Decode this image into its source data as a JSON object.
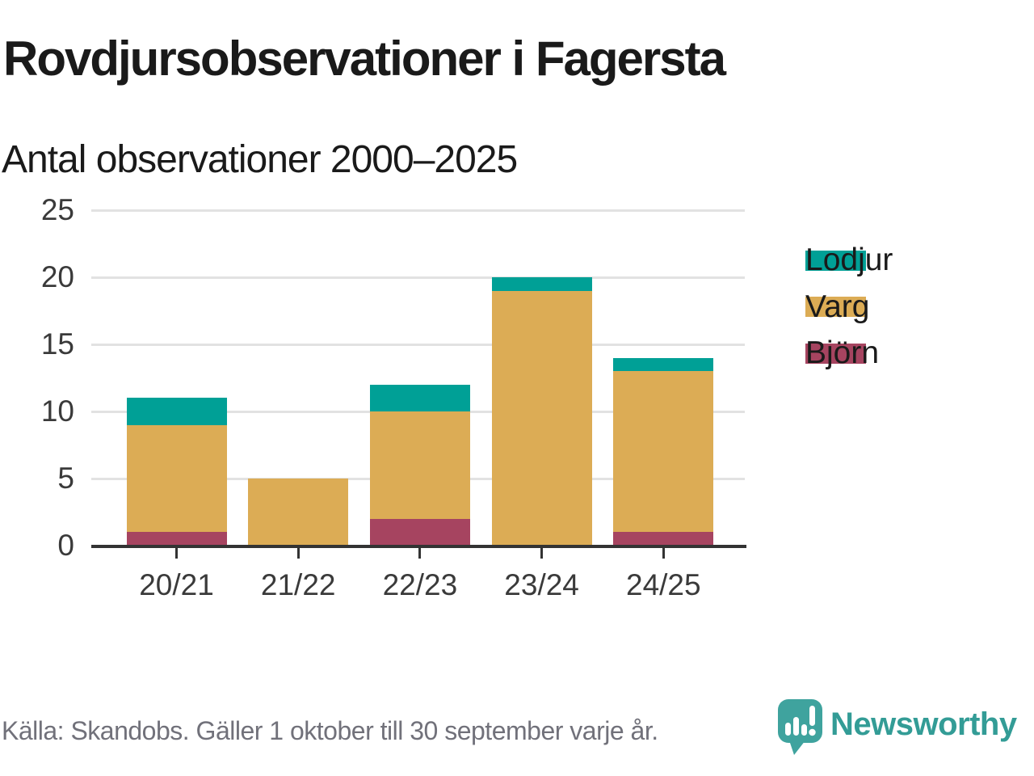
{
  "header": {
    "title": "Rovdjursobservationer i Fagersta",
    "subtitle": "Antal observationer 2000–2025"
  },
  "footer": {
    "source": "Källa: Skandobs. Gäller 1 oktober till 30 september varje år.",
    "brand": "Newsworthy"
  },
  "colors": {
    "teal": "#00A096",
    "gold": "#DCAC55",
    "maroon": "#A64460",
    "grid": "#E2E2E2",
    "axis": "#333333",
    "tick_text": "#3A3A3A",
    "text": "#1A1A1A",
    "muted": "#71717A",
    "brand": "#339C96",
    "logo": "#3FA39E"
  },
  "chart_data": {
    "type": "bar",
    "stacked": true,
    "title": "Rovdjursobservationer i Fagersta",
    "subtitle": "Antal observationer 2000–2025",
    "categories": [
      "20/21",
      "21/22",
      "22/23",
      "23/24",
      "24/25"
    ],
    "series": [
      {
        "name": "Björn",
        "color": "#A64460",
        "values": [
          1,
          0,
          2,
          0,
          1
        ]
      },
      {
        "name": "Varg",
        "color": "#DCAC55",
        "values": [
          8,
          5,
          8,
          19,
          12
        ]
      },
      {
        "name": "Lodjur",
        "color": "#00A096",
        "values": [
          2,
          0,
          2,
          1,
          1
        ]
      }
    ],
    "legend": [
      {
        "label": "Lodjur",
        "color": "#00A096"
      },
      {
        "label": "Varg",
        "color": "#DCAC55"
      },
      {
        "label": "Björn",
        "color": "#A64460"
      }
    ],
    "xlabel": "",
    "ylabel": "",
    "ylim": [
      0,
      25
    ],
    "yticks": [
      0,
      5,
      10,
      15,
      20,
      25
    ],
    "grid": "on",
    "legend_position": "right"
  }
}
